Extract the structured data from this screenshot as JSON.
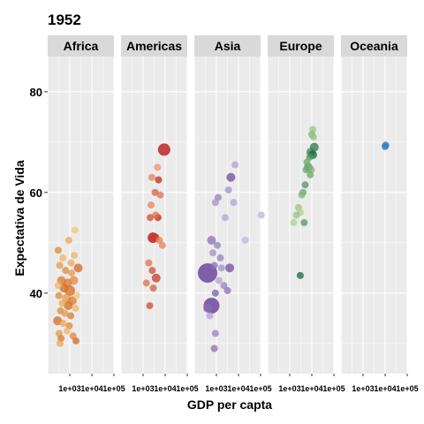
{
  "chart_data": {
    "type": "scatter",
    "title": "1952",
    "xlabel": "GDP per capta",
    "ylabel": "Expectativa de Vida",
    "x_scale": "log10",
    "xlim": [
      100,
      100000
    ],
    "ylim": [
      24,
      87
    ],
    "x_ticks": [
      1000,
      10000,
      100000
    ],
    "x_tick_labels": [
      "1e+03",
      "1e+04",
      "1e+05"
    ],
    "y_ticks": [
      40,
      60,
      80
    ],
    "y_tick_labels": [
      "40",
      "60",
      "80"
    ],
    "grid": true,
    "palette": {
      "Africa": {
        "light": "#fee391",
        "dark": "#cc4c02"
      },
      "Americas": {
        "light": "#fdbb84",
        "dark": "#b30000"
      },
      "Asia": {
        "light": "#dadaeb",
        "dark": "#54278f"
      },
      "Europe": {
        "light": "#d9f0a3",
        "dark": "#005a32"
      },
      "Oceania": {
        "light": "#6baed6",
        "dark": "#2171b5"
      }
    },
    "facets": [
      {
        "name": "Africa",
        "points": [
          {
            "x": 300,
            "y": 48.5,
            "shade": 0.6,
            "size": 4
          },
          {
            "x": 480,
            "y": 47.0,
            "shade": 0.3,
            "size": 4
          },
          {
            "x": 900,
            "y": 50.5,
            "shade": 0.4,
            "size": 4
          },
          {
            "x": 1700,
            "y": 52.5,
            "shade": 0.2,
            "size": 4
          },
          {
            "x": 2400,
            "y": 45.0,
            "shade": 0.8,
            "size": 5
          },
          {
            "x": 350,
            "y": 45.5,
            "shade": 0.5,
            "size": 4
          },
          {
            "x": 650,
            "y": 44.5,
            "shade": 0.6,
            "size": 4
          },
          {
            "x": 1200,
            "y": 44.0,
            "shade": 0.5,
            "size": 4
          },
          {
            "x": 420,
            "y": 42.5,
            "shade": 0.7,
            "size": 5
          },
          {
            "x": 800,
            "y": 42.0,
            "shade": 0.7,
            "size": 5
          },
          {
            "x": 1500,
            "y": 42.5,
            "shade": 0.6,
            "size": 5
          },
          {
            "x": 550,
            "y": 41.0,
            "shade": 0.8,
            "size": 5
          },
          {
            "x": 1000,
            "y": 40.5,
            "shade": 0.8,
            "size": 6
          },
          {
            "x": 320,
            "y": 39.5,
            "shade": 0.6,
            "size": 4
          },
          {
            "x": 700,
            "y": 39.0,
            "shade": 0.5,
            "size": 5
          },
          {
            "x": 1300,
            "y": 38.5,
            "shade": 0.7,
            "size": 5
          },
          {
            "x": 450,
            "y": 38.0,
            "shade": 0.4,
            "size": 4
          },
          {
            "x": 850,
            "y": 37.5,
            "shade": 0.8,
            "size": 5
          },
          {
            "x": 1800,
            "y": 37.0,
            "shade": 0.3,
            "size": 4
          },
          {
            "x": 380,
            "y": 36.5,
            "shade": 0.6,
            "size": 4
          },
          {
            "x": 600,
            "y": 36.0,
            "shade": 0.5,
            "size": 4
          },
          {
            "x": 1100,
            "y": 35.5,
            "shade": 0.7,
            "size": 4
          },
          {
            "x": 280,
            "y": 34.5,
            "shade": 0.8,
            "size": 5
          },
          {
            "x": 500,
            "y": 34.0,
            "shade": 0.4,
            "size": 4
          },
          {
            "x": 950,
            "y": 33.5,
            "shade": 0.6,
            "size": 4
          },
          {
            "x": 330,
            "y": 32.0,
            "shade": 0.5,
            "size": 4
          },
          {
            "x": 750,
            "y": 32.5,
            "shade": 0.3,
            "size": 4
          },
          {
            "x": 400,
            "y": 31.0,
            "shade": 0.7,
            "size": 4
          },
          {
            "x": 1400,
            "y": 31.5,
            "shade": 0.6,
            "size": 4
          },
          {
            "x": 360,
            "y": 30.0,
            "shade": 0.4,
            "size": 4
          },
          {
            "x": 1900,
            "y": 30.5,
            "shade": 0.8,
            "size": 4
          },
          {
            "x": 1600,
            "y": 47.5,
            "shade": 0.3,
            "size": 4
          },
          {
            "x": 2100,
            "y": 39.5,
            "shade": 0.2,
            "size": 4
          },
          {
            "x": 300,
            "y": 41.5,
            "shade": 0.3,
            "size": 4
          },
          {
            "x": 1150,
            "y": 46.0,
            "shade": 0.4,
            "size": 4
          }
        ]
      },
      {
        "name": "Americas",
        "points": [
          {
            "x": 9000,
            "y": 68.5,
            "shade": 0.95,
            "size": 7
          },
          {
            "x": 4500,
            "y": 65.0,
            "shade": 0.2,
            "size": 4
          },
          {
            "x": 2500,
            "y": 63.0,
            "shade": 0.3,
            "size": 4
          },
          {
            "x": 5000,
            "y": 62.5,
            "shade": 0.8,
            "size": 4
          },
          {
            "x": 3500,
            "y": 60.0,
            "shade": 0.5,
            "size": 4
          },
          {
            "x": 6000,
            "y": 59.5,
            "shade": 0.4,
            "size": 4
          },
          {
            "x": 2300,
            "y": 57.5,
            "shade": 0.3,
            "size": 4
          },
          {
            "x": 2100,
            "y": 55.0,
            "shade": 0.6,
            "size": 4
          },
          {
            "x": 4700,
            "y": 55.0,
            "shade": 0.8,
            "size": 4
          },
          {
            "x": 3700,
            "y": 55.5,
            "shade": 0.4,
            "size": 4
          },
          {
            "x": 2800,
            "y": 51.0,
            "shade": 0.95,
            "size": 6
          },
          {
            "x": 3500,
            "y": 51.0,
            "shade": 0.7,
            "size": 5
          },
          {
            "x": 5400,
            "y": 50.5,
            "shade": 0.3,
            "size": 4
          },
          {
            "x": 1800,
            "y": 46.0,
            "shade": 0.4,
            "size": 4
          },
          {
            "x": 2600,
            "y": 44.5,
            "shade": 0.6,
            "size": 4
          },
          {
            "x": 3900,
            "y": 43.0,
            "shade": 0.7,
            "size": 5
          },
          {
            "x": 1400,
            "y": 42.0,
            "shade": 0.4,
            "size": 4
          },
          {
            "x": 2900,
            "y": 41.0,
            "shade": 0.5,
            "size": 4
          },
          {
            "x": 2000,
            "y": 37.5,
            "shade": 0.6,
            "size": 4
          },
          {
            "x": 7500,
            "y": 49.5,
            "shade": 0.3,
            "size": 4
          }
        ]
      },
      {
        "name": "Asia",
        "points": [
          {
            "x": 7000,
            "y": 65.5,
            "shade": 0.3,
            "size": 4
          },
          {
            "x": 4500,
            "y": 63.0,
            "shade": 0.8,
            "size": 5
          },
          {
            "x": 3500,
            "y": 60.5,
            "shade": 0.4,
            "size": 4
          },
          {
            "x": 1200,
            "y": 59.0,
            "shade": 0.5,
            "size": 4
          },
          {
            "x": 900,
            "y": 58.0,
            "shade": 0.4,
            "size": 4
          },
          {
            "x": 6000,
            "y": 58.0,
            "shade": 0.3,
            "size": 4
          },
          {
            "x": 2500,
            "y": 55.0,
            "shade": 0.3,
            "size": 4
          },
          {
            "x": 108000,
            "y": 55.5,
            "shade": 0.2,
            "size": 4
          },
          {
            "x": 600,
            "y": 50.5,
            "shade": 0.6,
            "size": 5
          },
          {
            "x": 1100,
            "y": 49.5,
            "shade": 0.5,
            "size": 4
          },
          {
            "x": 20000,
            "y": 50.5,
            "shade": 0.2,
            "size": 4
          },
          {
            "x": 700,
            "y": 48.0,
            "shade": 0.4,
            "size": 4
          },
          {
            "x": 1500,
            "y": 47.0,
            "shade": 0.5,
            "size": 4
          },
          {
            "x": 800,
            "y": 45.5,
            "shade": 0.6,
            "size": 4
          },
          {
            "x": 1700,
            "y": 45.0,
            "shade": 0.4,
            "size": 4
          },
          {
            "x": 4000,
            "y": 45.0,
            "shade": 0.8,
            "size": 5
          },
          {
            "x": 400,
            "y": 44.0,
            "shade": 0.95,
            "size": 11
          },
          {
            "x": 1300,
            "y": 42.5,
            "shade": 0.3,
            "size": 4
          },
          {
            "x": 2200,
            "y": 41.5,
            "shade": 0.5,
            "size": 4
          },
          {
            "x": 900,
            "y": 40.0,
            "shade": 0.7,
            "size": 4
          },
          {
            "x": 3200,
            "y": 40.5,
            "shade": 0.6,
            "size": 4
          },
          {
            "x": 600,
            "y": 37.5,
            "shade": 0.95,
            "size": 9
          },
          {
            "x": 400,
            "y": 37.0,
            "shade": 0.6,
            "size": 5
          },
          {
            "x": 500,
            "y": 35.5,
            "shade": 0.3,
            "size": 4
          },
          {
            "x": 900,
            "y": 32.0,
            "shade": 0.5,
            "size": 4
          },
          {
            "x": 800,
            "y": 29.0,
            "shade": 0.6,
            "size": 4
          }
        ]
      },
      {
        "name": "Europe",
        "points": [
          {
            "x": 11000,
            "y": 72.5,
            "shade": 0.3,
            "size": 4
          },
          {
            "x": 10000,
            "y": 71.5,
            "shade": 0.4,
            "size": 4
          },
          {
            "x": 12000,
            "y": 71.0,
            "shade": 0.3,
            "size": 4
          },
          {
            "x": 13000,
            "y": 69.0,
            "shade": 0.8,
            "size": 5
          },
          {
            "x": 9000,
            "y": 68.0,
            "shade": 0.7,
            "size": 5
          },
          {
            "x": 11000,
            "y": 67.5,
            "shade": 0.9,
            "size": 5
          },
          {
            "x": 8000,
            "y": 67.0,
            "shade": 0.6,
            "size": 4
          },
          {
            "x": 6000,
            "y": 66.0,
            "shade": 0.5,
            "size": 4
          },
          {
            "x": 7000,
            "y": 65.0,
            "shade": 0.6,
            "size": 5
          },
          {
            "x": 5500,
            "y": 64.5,
            "shade": 0.5,
            "size": 4
          },
          {
            "x": 9500,
            "y": 64.5,
            "shade": 0.4,
            "size": 4
          },
          {
            "x": 8500,
            "y": 63.5,
            "shade": 0.5,
            "size": 4
          },
          {
            "x": 5000,
            "y": 61.5,
            "shade": 0.6,
            "size": 4
          },
          {
            "x": 4000,
            "y": 60.0,
            "shade": 0.5,
            "size": 4
          },
          {
            "x": 3500,
            "y": 59.5,
            "shade": 0.4,
            "size": 4
          },
          {
            "x": 2500,
            "y": 57.0,
            "shade": 0.3,
            "size": 4
          },
          {
            "x": 3000,
            "y": 56.0,
            "shade": 0.2,
            "size": 4
          },
          {
            "x": 2000,
            "y": 55.5,
            "shade": 0.3,
            "size": 4
          },
          {
            "x": 4500,
            "y": 54.0,
            "shade": 0.6,
            "size": 4
          },
          {
            "x": 1500,
            "y": 54.0,
            "shade": 0.2,
            "size": 4
          },
          {
            "x": 3000,
            "y": 43.5,
            "shade": 0.9,
            "size": 4
          }
        ]
      },
      {
        "name": "Oceania",
        "points": [
          {
            "x": 10000,
            "y": 69.1,
            "shade": 0.7,
            "size": 4
          },
          {
            "x": 10600,
            "y": 69.4,
            "shade": 0.9,
            "size": 4
          }
        ]
      }
    ]
  }
}
